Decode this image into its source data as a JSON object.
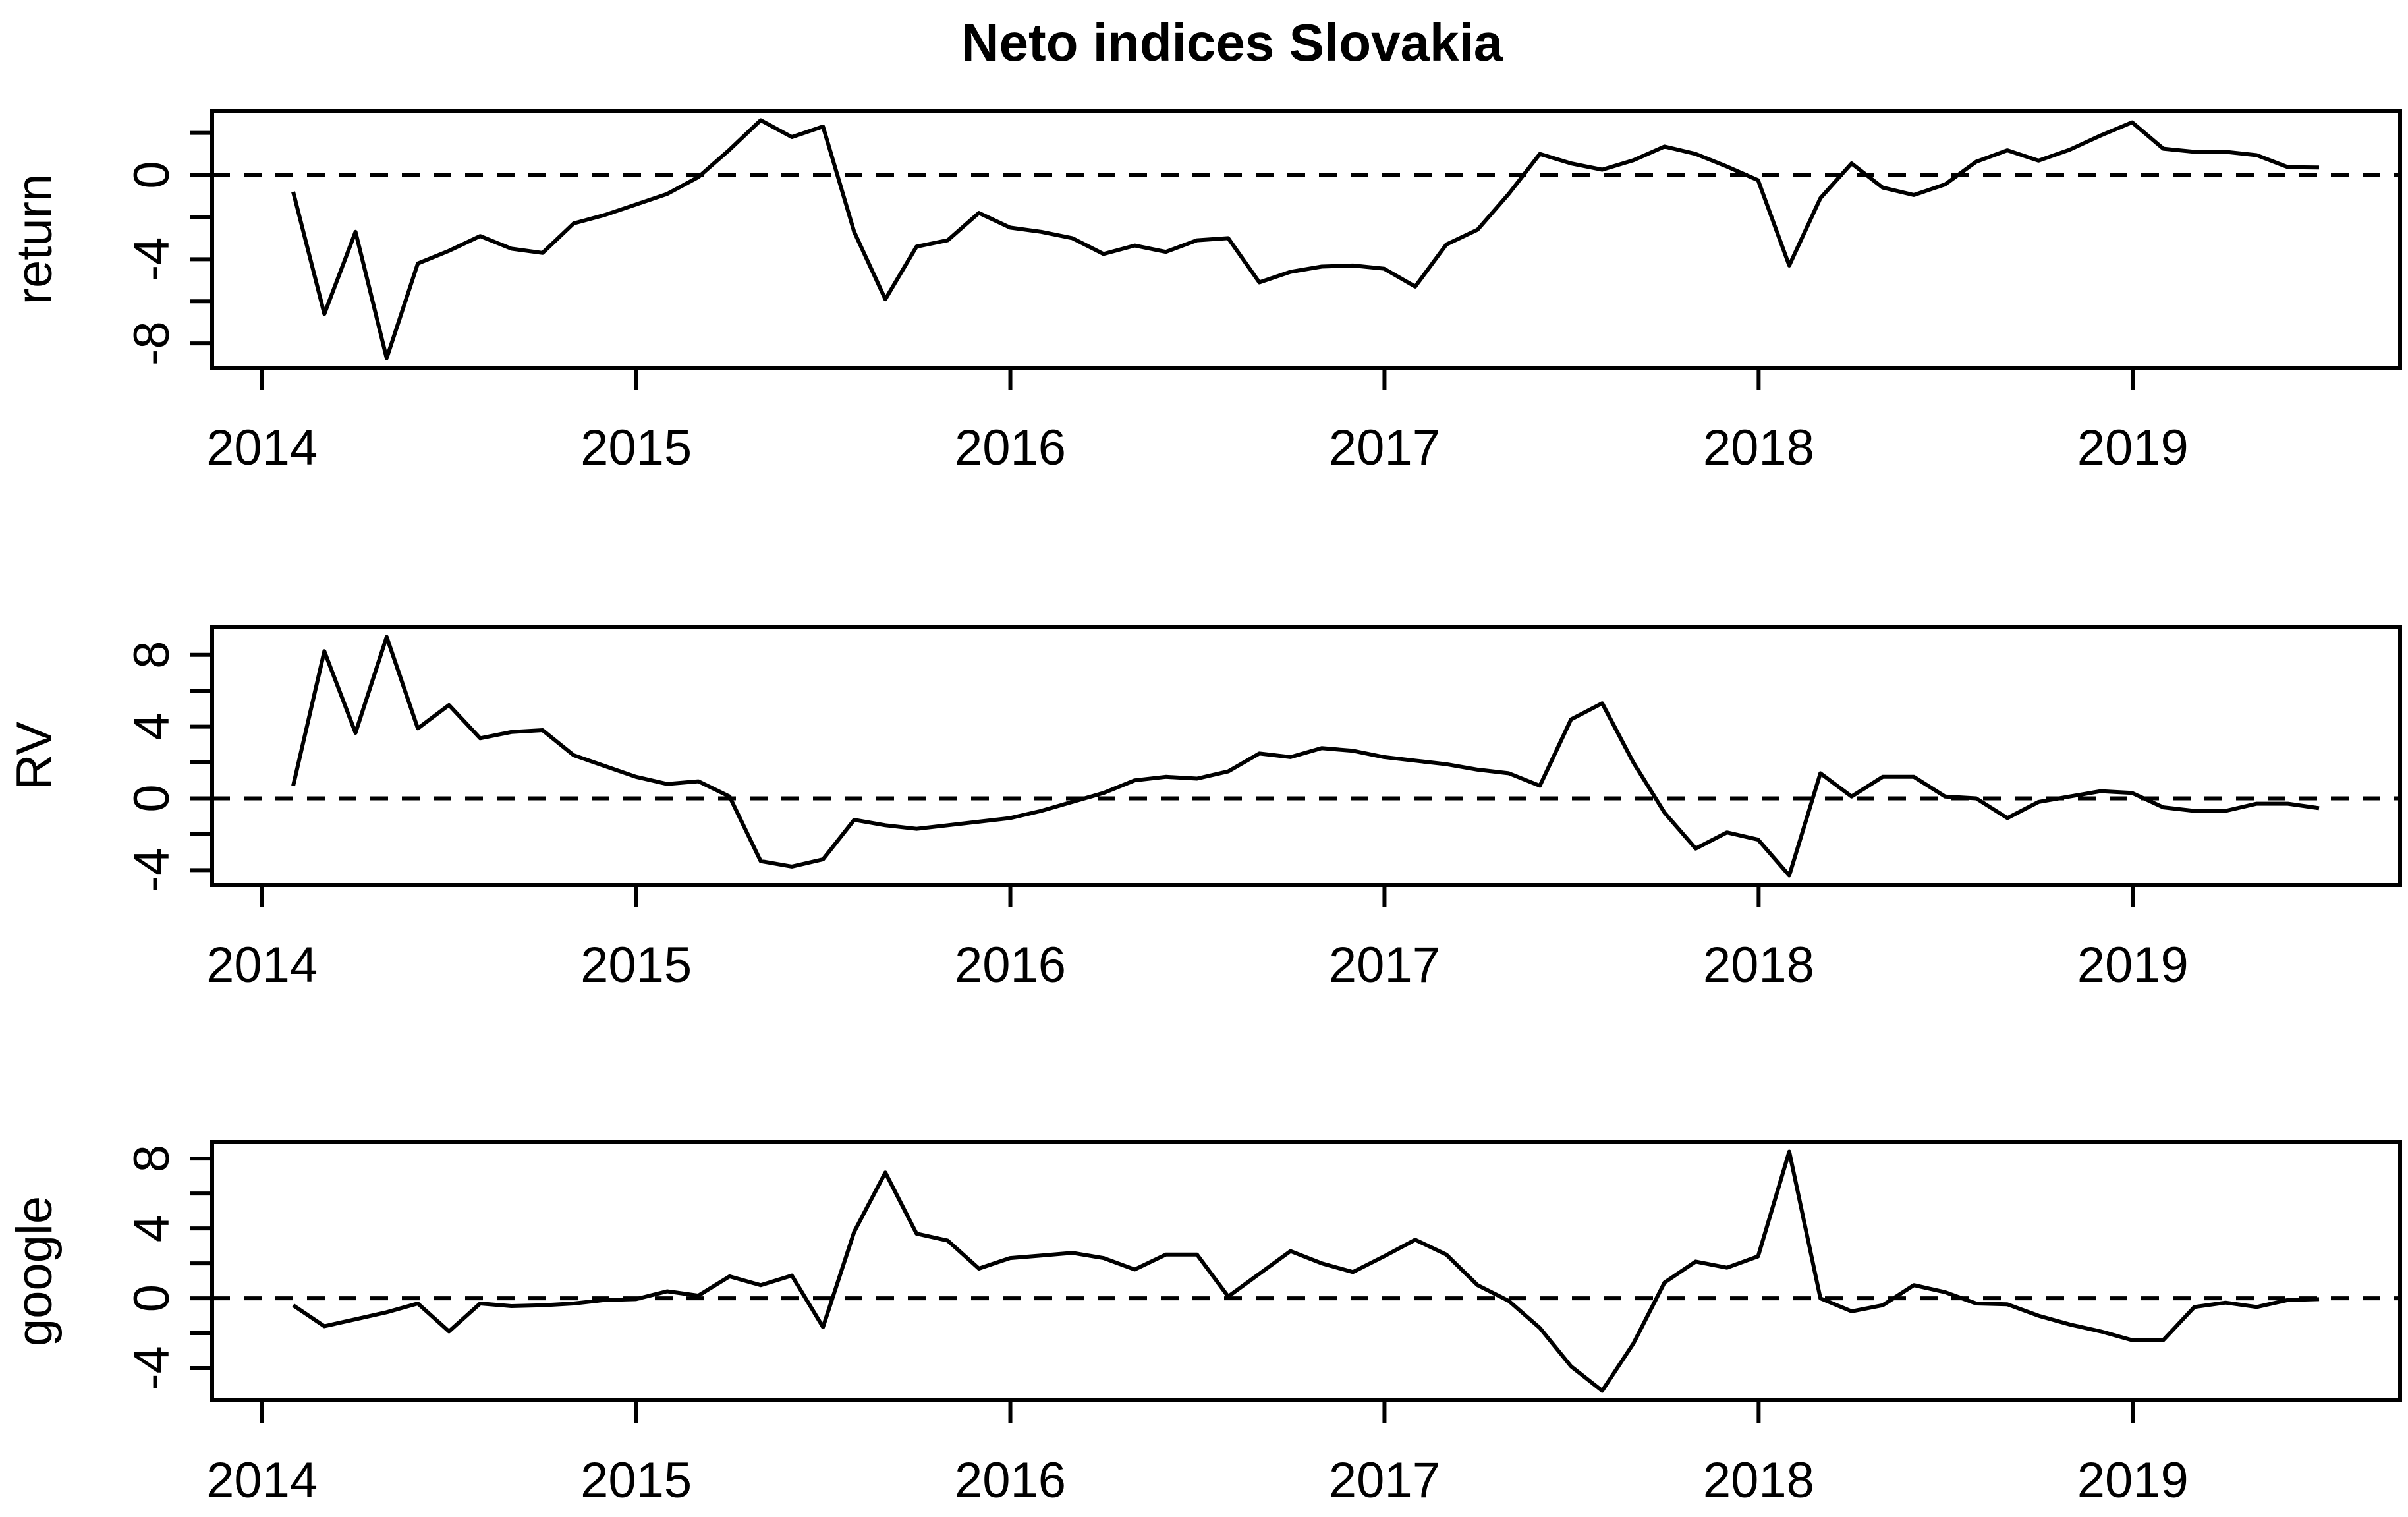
{
  "title": "Neto indices Slovakia",
  "colors": {
    "foreground": "#000000",
    "background": "#ffffff"
  },
  "chart_data": [
    {
      "type": "line",
      "ylabel": "return",
      "x_start": 2014.0833,
      "x_step": 0.0833,
      "frequency": "monthly",
      "x_ticks": [
        2014,
        2015,
        2016,
        2017,
        2018,
        2019
      ],
      "y_ticks": [
        -8,
        -6,
        -4,
        -2,
        0,
        2
      ],
      "y_tick_labels": [
        "-8",
        "",
        "-4",
        "",
        "0",
        ""
      ],
      "zero_line_y": 0,
      "grid": false,
      "legend": "none",
      "values": [
        -0.8,
        -6.6,
        -2.7,
        -8.7,
        -4.2,
        -3.6,
        -2.9,
        -3.5,
        -3.7,
        -2.3,
        -1.9,
        -1.4,
        -0.9,
        -0.1,
        1.2,
        2.6,
        1.8,
        2.3,
        -2.7,
        -5.9,
        -3.4,
        -3.1,
        -1.8,
        -2.5,
        -2.7,
        -3.0,
        -3.75,
        -3.35,
        -3.65,
        -3.1,
        -3.0,
        -5.1,
        -4.6,
        -4.35,
        -4.3,
        -4.45,
        -5.3,
        -3.3,
        -2.6,
        -0.9,
        1.0,
        0.55,
        0.25,
        0.7,
        1.35,
        1.0,
        0.4,
        -0.25,
        -4.3,
        -1.1,
        0.55,
        -0.6,
        -0.95,
        -0.45,
        0.63,
        1.17,
        0.68,
        1.2,
        1.88,
        2.5,
        1.25,
        1.1,
        1.1,
        0.94,
        0.37,
        0.35
      ]
    },
    {
      "type": "line",
      "ylabel": "RV",
      "x_start": 2014.0833,
      "x_step": 0.0833,
      "frequency": "monthly",
      "x_ticks": [
        2014,
        2015,
        2016,
        2017,
        2018,
        2019
      ],
      "y_ticks": [
        -4,
        -2,
        0,
        2,
        4,
        6,
        8
      ],
      "y_tick_labels": [
        "-4",
        "",
        "0",
        "",
        "4",
        "",
        "8"
      ],
      "zero_line_y": 0,
      "grid": false,
      "legend": "none",
      "values": [
        0.7,
        8.2,
        3.65,
        9.0,
        3.9,
        5.2,
        3.35,
        3.7,
        3.8,
        2.4,
        1.8,
        1.2,
        0.8,
        0.95,
        0.1,
        -3.5,
        -3.8,
        -3.4,
        -1.2,
        -1.5,
        -1.7,
        -1.5,
        -1.3,
        -1.1,
        -0.7,
        -0.2,
        0.3,
        1.0,
        1.2,
        1.1,
        1.5,
        2.5,
        2.3,
        2.8,
        2.65,
        2.3,
        2.1,
        1.9,
        1.6,
        1.4,
        0.7,
        4.4,
        5.3,
        2.0,
        -0.8,
        -2.8,
        -1.9,
        -2.3,
        -4.3,
        1.4,
        0.1,
        1.2,
        1.2,
        0.1,
        0.0,
        -1.1,
        -0.2,
        0.1,
        0.4,
        0.3,
        -0.5,
        -0.7,
        -0.7,
        -0.3,
        -0.3,
        -0.55
      ]
    },
    {
      "type": "line",
      "ylabel": "google",
      "x_start": 2014.0833,
      "x_step": 0.0833,
      "frequency": "monthly",
      "x_ticks": [
        2014,
        2015,
        2016,
        2017,
        2018,
        2019
      ],
      "y_ticks": [
        -4,
        -2,
        0,
        2,
        4,
        6,
        8
      ],
      "y_tick_labels": [
        "-4",
        "",
        "0",
        "",
        "4",
        "",
        "8"
      ],
      "zero_line_y": 0,
      "grid": false,
      "legend": "none",
      "values": [
        -0.4,
        -1.6,
        -1.2,
        -0.8,
        -0.3,
        -1.9,
        -0.3,
        -0.45,
        -0.4,
        -0.3,
        -0.1,
        -0.05,
        0.4,
        0.15,
        1.25,
        0.75,
        1.3,
        -1.65,
        3.8,
        7.2,
        3.7,
        3.3,
        1.7,
        2.3,
        2.45,
        2.6,
        2.3,
        1.65,
        2.5,
        2.5,
        0.1,
        1.4,
        2.7,
        2.0,
        1.5,
        2.4,
        3.35,
        2.5,
        0.75,
        -0.15,
        -1.7,
        -3.9,
        -5.3,
        -2.6,
        0.9,
        2.1,
        1.75,
        2.4,
        8.4,
        0.0,
        -0.75,
        -0.4,
        0.75,
        0.35,
        -0.3,
        -0.35,
        -1.0,
        -1.5,
        -1.9,
        -2.4,
        -2.4,
        -0.5,
        -0.25,
        -0.5,
        -0.1,
        -0.05
      ]
    }
  ]
}
